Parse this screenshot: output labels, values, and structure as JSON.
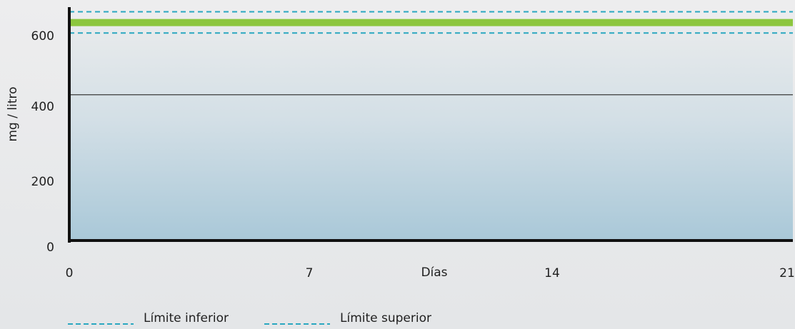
{
  "chart_data": {
    "type": "line",
    "xlabel": "Días",
    "ylabel": "mg / litro",
    "x_ticks": [
      "0",
      "7",
      "14",
      "21"
    ],
    "y_ticks": [
      "0",
      "200",
      "400",
      "600"
    ],
    "xlim": [
      0,
      21
    ],
    "ylim": [
      0,
      650
    ],
    "grid": false,
    "legend_position": "bottom-left",
    "reference_lines": [
      {
        "name": "Límite inferior",
        "y": 578,
        "style": "dashed",
        "color": "#2aa7c0"
      },
      {
        "name": "Límite superior",
        "y": 637,
        "style": "dashed",
        "color": "#2aa7c0"
      }
    ],
    "horizontal_line": {
      "y": 406,
      "color": "#3a3a3a"
    },
    "series": [
      {
        "x": [
          0,
          21
        ],
        "values": [
          607,
          607
        ],
        "color": "#8cc63f"
      }
    ],
    "legend": [
      {
        "label": "Límite inferior",
        "color": "#2aa7c0",
        "style": "dashed"
      },
      {
        "label": "Límite superior",
        "color": "#2aa7c0",
        "style": "dashed"
      }
    ]
  }
}
